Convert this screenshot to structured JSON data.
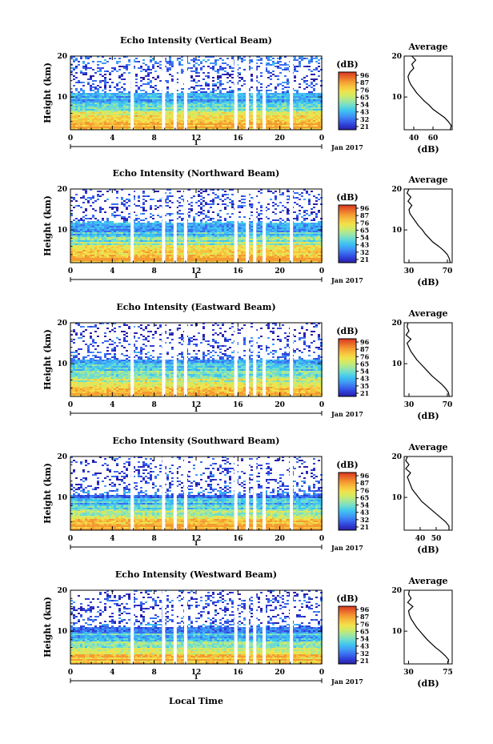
{
  "figure": {
    "time_axis_label": "Local Time",
    "date_label": "Jan 2017",
    "day_marker": "1",
    "x_tick_labels": [
      "0",
      "4",
      "8",
      "12",
      "16",
      "20",
      "0"
    ],
    "height_label": "Height (km)",
    "avg_title": "Average",
    "unit_label": "(dB)",
    "palette": [
      "#2a1ea6",
      "#2e3fd6",
      "#3a6cf0",
      "#3f9cf5",
      "#3fc4f0",
      "#6ddcd0",
      "#9fe7a0",
      "#cdea6a",
      "#f0e24c",
      "#f7c23e",
      "#f49a32",
      "#e8682a",
      "#d8361f"
    ]
  },
  "chart_data": [
    {
      "type": "heatmap",
      "title": "Echo Intensity (Vertical Beam)",
      "xlabel": "",
      "ylabel": "Height (km)",
      "xlim": [
        0,
        24
      ],
      "ylim": [
        2,
        20
      ],
      "x_ticks": [
        0,
        4,
        8,
        12,
        16,
        20,
        24
      ],
      "y_ticks": [
        10,
        20
      ],
      "colorbar": {
        "label": "(dB)",
        "ticks": [
          96,
          87,
          76,
          65,
          54,
          43,
          32,
          21
        ]
      },
      "data_gaps_hours": [
        5.9,
        8.9,
        10.0,
        11.0,
        15.8,
        16.9,
        17.6,
        18.5,
        21.1
      ],
      "average_profile": {
        "title": "Average",
        "xlabel": "(dB)",
        "xlim": [
          30,
          80
        ],
        "x_ticks": [
          40,
          60
        ],
        "y_ticks": [
          10,
          20
        ],
        "height_km": [
          2,
          3,
          4,
          5,
          6,
          7,
          8,
          9,
          10,
          11,
          12,
          13,
          14,
          15,
          16,
          17,
          18,
          19,
          20
        ],
        "value_db": [
          78,
          79,
          76,
          72,
          66,
          60,
          56,
          51,
          47,
          43,
          40,
          37,
          35,
          34,
          36,
          40,
          38,
          42,
          38
        ]
      }
    },
    {
      "type": "heatmap",
      "title": "Echo Intensity (Northward Beam)",
      "xlabel": "",
      "ylabel": "Height (km)",
      "xlim": [
        0,
        24
      ],
      "ylim": [
        2,
        20
      ],
      "x_ticks": [
        0,
        4,
        8,
        12,
        16,
        20,
        24
      ],
      "y_ticks": [
        10,
        20
      ],
      "colorbar": {
        "label": "(dB)",
        "ticks": [
          96,
          87,
          76,
          65,
          54,
          43,
          32,
          21
        ]
      },
      "data_gaps_hours": [
        5.9,
        8.9,
        10.0,
        11.0,
        15.8,
        16.9,
        17.6,
        18.5,
        21.1
      ],
      "average_profile": {
        "title": "Average",
        "xlabel": "(dB)",
        "xlim": [
          25,
          75
        ],
        "x_ticks": [
          30,
          70
        ],
        "y_ticks": [
          10,
          20
        ],
        "height_km": [
          2,
          3,
          4,
          5,
          6,
          7,
          8,
          9,
          10,
          11,
          12,
          13,
          14,
          15,
          16,
          17,
          18,
          19,
          20
        ],
        "value_db": [
          73,
          72,
          70,
          66,
          61,
          55,
          51,
          47,
          44,
          40,
          37,
          34,
          31,
          30,
          33,
          29,
          32,
          28,
          30
        ]
      }
    },
    {
      "type": "heatmap",
      "title": "Echo Intensity (Eastward Beam)",
      "xlabel": "",
      "ylabel": "Height (km)",
      "xlim": [
        0,
        24
      ],
      "ylim": [
        2,
        20
      ],
      "x_ticks": [
        0,
        4,
        8,
        12,
        16,
        20,
        24
      ],
      "y_ticks": [
        10,
        20
      ],
      "colorbar": {
        "label": "(dB)",
        "ticks": [
          96,
          87,
          76,
          65,
          54,
          43,
          35,
          21
        ]
      },
      "data_gaps_hours": [
        5.9,
        8.9,
        10.0,
        11.0,
        15.8,
        16.9,
        17.6,
        18.5,
        21.1
      ],
      "average_profile": {
        "title": "Average",
        "xlabel": "(dB)",
        "xlim": [
          25,
          75
        ],
        "x_ticks": [
          30,
          70
        ],
        "y_ticks": [
          10,
          20
        ],
        "height_km": [
          2,
          3,
          4,
          5,
          6,
          7,
          8,
          9,
          10,
          11,
          12,
          13,
          14,
          15,
          16,
          17,
          18,
          19,
          20
        ],
        "value_db": [
          72,
          71,
          68,
          64,
          59,
          54,
          50,
          46,
          42,
          38,
          35,
          32,
          30,
          28,
          32,
          27,
          30,
          28,
          29
        ]
      }
    },
    {
      "type": "heatmap",
      "title": "Echo Intensity (Southward Beam)",
      "xlabel": "",
      "ylabel": "Height (km)",
      "xlim": [
        0,
        24
      ],
      "ylim": [
        2,
        20
      ],
      "x_ticks": [
        0,
        4,
        8,
        12,
        16,
        20,
        24
      ],
      "y_ticks": [
        10,
        20
      ],
      "colorbar": {
        "label": "(dB)",
        "ticks": [
          96,
          87,
          76,
          65,
          54,
          43,
          32,
          21
        ]
      },
      "data_gaps_hours": [
        5.9,
        8.9,
        10.0,
        11.0,
        15.8,
        16.9,
        17.6,
        18.5,
        21.1
      ],
      "average_profile": {
        "title": "Average",
        "xlabel": "(dB)",
        "xlim": [
          30,
          60
        ],
        "x_ticks": [
          40,
          50
        ],
        "y_ticks": [
          10,
          20
        ],
        "height_km": [
          2,
          3,
          4,
          5,
          6,
          7,
          8,
          9,
          10,
          11,
          12,
          13,
          14,
          15,
          16,
          17,
          18,
          19,
          20
        ],
        "value_db": [
          58,
          58,
          56,
          53,
          50,
          47,
          44,
          41,
          39,
          37,
          35,
          34,
          33,
          32,
          34,
          31,
          33,
          31,
          32
        ]
      }
    },
    {
      "type": "heatmap",
      "title": "Echo Intensity (Westward Beam)",
      "xlabel": "",
      "ylabel": "Height (km)",
      "xlim": [
        0,
        24
      ],
      "ylim": [
        2,
        20
      ],
      "x_ticks": [
        0,
        4,
        8,
        12,
        16,
        20,
        24
      ],
      "y_ticks": [
        10,
        20
      ],
      "colorbar": {
        "label": "(dB)",
        "ticks": [
          96,
          87,
          76,
          65,
          54,
          43,
          32,
          21
        ]
      },
      "data_gaps_hours": [
        5.9,
        8.9,
        10.0,
        11.0,
        15.8,
        16.9,
        17.6,
        18.5,
        21.1
      ],
      "average_profile": {
        "title": "Average",
        "xlabel": "(dB)",
        "xlim": [
          25,
          80
        ],
        "x_ticks": [
          30,
          75
        ],
        "y_ticks": [
          10,
          20
        ],
        "height_km": [
          2,
          3,
          4,
          5,
          6,
          7,
          8,
          9,
          10,
          11,
          12,
          13,
          14,
          15,
          16,
          17,
          18,
          19,
          20
        ],
        "value_db": [
          75,
          76,
          72,
          67,
          61,
          56,
          51,
          47,
          43,
          39,
          36,
          33,
          31,
          30,
          35,
          29,
          33,
          30,
          31
        ]
      }
    }
  ]
}
